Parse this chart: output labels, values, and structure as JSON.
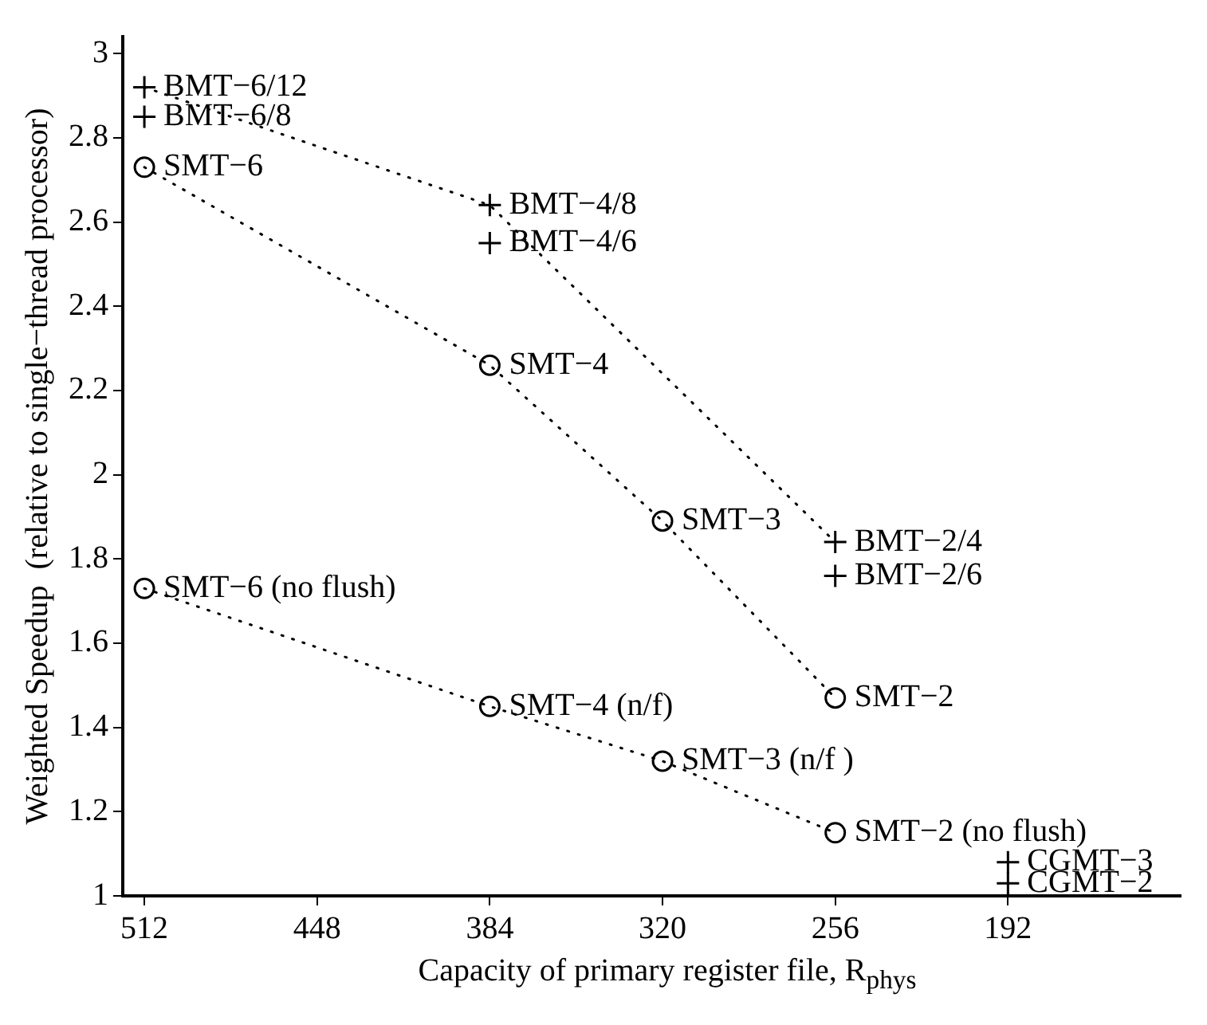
{
  "chart_data": {
    "type": "line",
    "xlabel": "Capacity of primary register file, R$_{phys}$",
    "ylabel": "Weighted Speedup  (relative to single−thread processor)",
    "xlim": [
      520,
      128
    ],
    "xticks": [
      512,
      448,
      384,
      320,
      256,
      192
    ],
    "ylim": [
      1,
      3.04
    ],
    "yticks": [
      1,
      1.2,
      1.4,
      1.6,
      1.8,
      2,
      2.2,
      2.4,
      2.6,
      2.8,
      3
    ],
    "series": [
      {
        "type": "line",
        "line_style": "dotted",
        "marker": "none",
        "color": "#000000",
        "x": [
          512,
          384,
          256
        ],
        "values": [
          2.92,
          2.64,
          1.84
        ]
      },
      {
        "type": "scatter",
        "marker": "cross",
        "color": "#000000",
        "x": [
          512,
          512,
          384,
          384,
          256,
          256,
          192,
          192
        ],
        "values": [
          2.92,
          2.85,
          2.64,
          2.55,
          1.84,
          1.76,
          1.08,
          1.03
        ]
      },
      {
        "type": "line",
        "line_style": "dotted",
        "marker": "circle",
        "color": "#000000",
        "x": [
          512,
          384,
          320,
          256
        ],
        "values": [
          2.73,
          2.26,
          1.89,
          1.47
        ]
      },
      {
        "type": "line",
        "line_style": "dotted",
        "marker": "circle",
        "color": "#000000",
        "x": [
          512,
          384,
          320,
          256
        ],
        "values": [
          1.73,
          1.45,
          1.32,
          1.15
        ]
      }
    ],
    "annotations": [
      {
        "text": "BMT−6/12",
        "x": 512,
        "y": 2.92
      },
      {
        "text": "BMT−6/8",
        "x": 512,
        "y": 2.85
      },
      {
        "text": "SMT−6",
        "x": 512,
        "y": 2.73
      },
      {
        "text": "BMT−4/8",
        "x": 384,
        "y": 2.64
      },
      {
        "text": "BMT−4/6",
        "x": 384,
        "y": 2.55
      },
      {
        "text": "SMT−4",
        "x": 384,
        "y": 2.26
      },
      {
        "text": "SMT−3",
        "x": 320,
        "y": 1.89
      },
      {
        "text": "BMT−2/4",
        "x": 256,
        "y": 1.84
      },
      {
        "text": "BMT−2/6",
        "x": 256,
        "y": 1.76
      },
      {
        "text": "SMT−2",
        "x": 256,
        "y": 1.47
      },
      {
        "text": "SMT−6 (no flush)",
        "x": 512,
        "y": 1.73
      },
      {
        "text": "SMT−4 (n/f)",
        "x": 384,
        "y": 1.45
      },
      {
        "text": "SMT−3 (n/f )",
        "x": 320,
        "y": 1.32
      },
      {
        "text": "SMT−2 (no flush)",
        "x": 256,
        "y": 1.15
      },
      {
        "text": "CGMT−3",
        "x": 192,
        "y": 1.08
      },
      {
        "text": "CGMT−2",
        "x": 192,
        "y": 1.03
      }
    ]
  }
}
